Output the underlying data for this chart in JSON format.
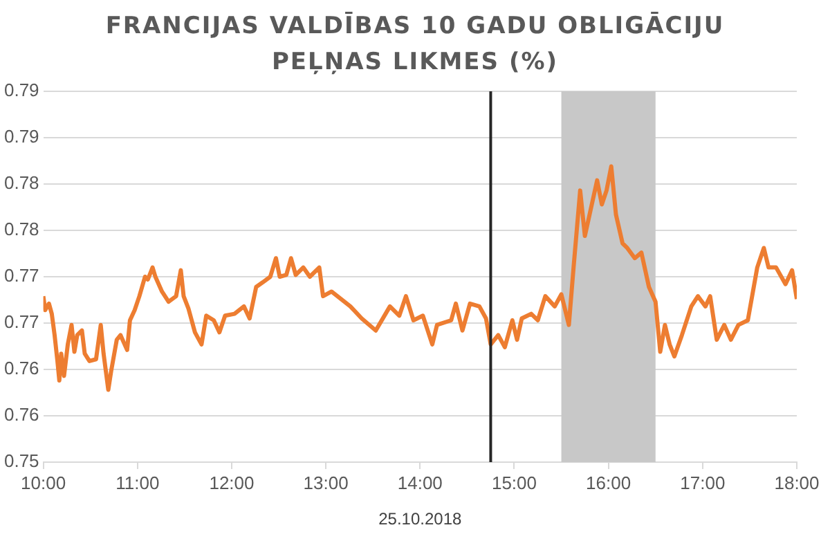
{
  "chart_data": {
    "type": "line",
    "title": "FRANCIJAS VALDĪBAS 10 GADU OBLIGĀCIJU PEĻŅAS LIKMES (%)",
    "xlabel": "25.10.2018",
    "x": [
      10.0,
      10.02,
      10.06,
      10.09,
      10.12,
      10.15,
      10.17,
      10.19,
      10.22,
      10.26,
      10.3,
      10.33,
      10.36,
      10.41,
      10.44,
      10.49,
      10.56,
      10.61,
      10.64,
      10.69,
      10.72,
      10.78,
      10.82,
      10.89,
      10.92,
      10.97,
      11.02,
      11.08,
      11.11,
      11.16,
      11.19,
      11.26,
      11.33,
      11.41,
      11.46,
      11.49,
      11.54,
      11.61,
      11.68,
      11.73,
      11.81,
      11.87,
      11.93,
      12.03,
      12.13,
      12.19,
      12.26,
      12.33,
      12.41,
      12.47,
      12.51,
      12.58,
      12.63,
      12.68,
      12.76,
      12.83,
      12.93,
      12.97,
      13.06,
      13.16,
      13.26,
      13.38,
      13.53,
      13.68,
      13.78,
      13.85,
      13.93,
      14.03,
      14.13,
      14.18,
      14.33,
      14.38,
      14.45,
      14.53,
      14.63,
      14.7,
      14.75,
      14.83,
      14.9,
      14.98,
      15.03,
      15.08,
      15.18,
      15.25,
      15.33,
      15.43,
      15.5,
      15.58,
      15.63,
      15.7,
      15.75,
      15.8,
      15.88,
      15.93,
      15.98,
      16.03,
      16.08,
      16.15,
      16.2,
      16.28,
      16.35,
      16.43,
      16.5,
      16.55,
      16.6,
      16.65,
      16.7,
      16.78,
      16.88,
      16.95,
      17.03,
      17.08,
      17.15,
      17.23,
      17.3,
      17.38,
      17.48,
      17.58,
      17.65,
      17.7,
      17.78,
      17.88,
      17.95,
      18.0
    ],
    "series": [
      {
        "color": "#ed7d31",
        "values": [
          0.7679,
          0.7664,
          0.7671,
          0.766,
          0.7637,
          0.7609,
          0.7588,
          0.7617,
          0.7593,
          0.7627,
          0.7648,
          0.7619,
          0.7637,
          0.7642,
          0.7617,
          0.7609,
          0.7611,
          0.7648,
          0.7617,
          0.7578,
          0.7598,
          0.7632,
          0.7637,
          0.7621,
          0.7653,
          0.7664,
          0.7679,
          0.77,
          0.7697,
          0.771,
          0.77,
          0.7684,
          0.7673,
          0.7679,
          0.7707,
          0.7679,
          0.7666,
          0.764,
          0.7627,
          0.7658,
          0.7653,
          0.764,
          0.7658,
          0.766,
          0.7668,
          0.7655,
          0.7689,
          0.7694,
          0.77,
          0.772,
          0.77,
          0.7702,
          0.772,
          0.7702,
          0.771,
          0.77,
          0.771,
          0.7679,
          0.7684,
          0.7676,
          0.7668,
          0.7655,
          0.7642,
          0.7668,
          0.7658,
          0.7679,
          0.7653,
          0.7658,
          0.7627,
          0.7648,
          0.7653,
          0.7671,
          0.7642,
          0.7671,
          0.7668,
          0.7655,
          0.7627,
          0.7637,
          0.7624,
          0.7653,
          0.7632,
          0.7655,
          0.766,
          0.7653,
          0.7679,
          0.7668,
          0.7681,
          0.7648,
          0.771,
          0.7793,
          0.7744,
          0.7767,
          0.7804,
          0.7778,
          0.7793,
          0.7819,
          0.7767,
          0.7736,
          0.7731,
          0.772,
          0.7726,
          0.7689,
          0.7673,
          0.7619,
          0.7648,
          0.7627,
          0.7614,
          0.7637,
          0.7668,
          0.7679,
          0.7668,
          0.7679,
          0.7632,
          0.7648,
          0.7632,
          0.7648,
          0.7653,
          0.771,
          0.7731,
          0.771,
          0.771,
          0.7692,
          0.7707,
          0.7676
        ]
      }
    ],
    "xlim": [
      10,
      18
    ],
    "xticks": [
      {
        "value": 10,
        "label": "10:00"
      },
      {
        "value": 11,
        "label": "11:00"
      },
      {
        "value": 12,
        "label": "12:00"
      },
      {
        "value": 13,
        "label": "13:00"
      },
      {
        "value": 14,
        "label": "14:00"
      },
      {
        "value": 15,
        "label": "15:00"
      },
      {
        "value": 16,
        "label": "16:00"
      },
      {
        "value": 17,
        "label": "17:00"
      },
      {
        "value": 18,
        "label": "18:00"
      }
    ],
    "ylim": [
      0.75,
      0.79
    ],
    "yticks": [
      {
        "value": 0.75,
        "label": "0.75"
      },
      {
        "value": 0.755,
        "label": "0.76"
      },
      {
        "value": 0.76,
        "label": "0.76"
      },
      {
        "value": 0.765,
        "label": "0.77"
      },
      {
        "value": 0.77,
        "label": "0.77"
      },
      {
        "value": 0.775,
        "label": "0.78"
      },
      {
        "value": 0.78,
        "label": "0.78"
      },
      {
        "value": 0.785,
        "label": "0.79"
      },
      {
        "value": 0.79,
        "label": "0.79"
      }
    ],
    "ref_lines": [
      {
        "axis": "x",
        "value": 14.75,
        "color": "#262626"
      }
    ],
    "bands": [
      {
        "axis": "x",
        "from": 15.5,
        "to": 16.5,
        "color": "#c8c8c8"
      }
    ],
    "grid": "y",
    "legend": false,
    "marker": "none",
    "line_style": "solid"
  }
}
